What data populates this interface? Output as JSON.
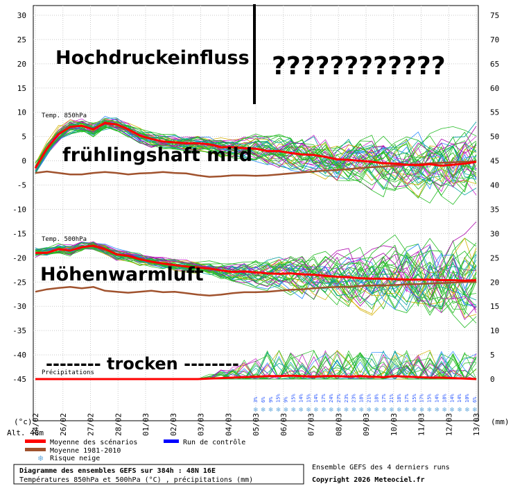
{
  "chart_data": {
    "type": "line",
    "panels": [
      {
        "name": "Temp. 850hPa",
        "ylim_left": [
          -10,
          10
        ]
      },
      {
        "name": "Temp. 500hPa",
        "ylim_left": [
          -30,
          -15
        ]
      },
      {
        "name": "Précipitations",
        "ylim_right": [
          0,
          10
        ]
      }
    ],
    "y_left_ticks": [
      "30",
      "25",
      "20",
      "15",
      "10",
      "5",
      "0",
      "-5",
      "-10",
      "-15",
      "-20",
      "-25",
      "-30",
      "-35",
      "-40",
      "-45"
    ],
    "y_right_ticks": [
      "75",
      "70",
      "65",
      "60",
      "55",
      "50",
      "45",
      "40",
      "35",
      "30",
      "25",
      "20",
      "15",
      "10",
      "5",
      "0"
    ],
    "x_ticks": [
      "24/02",
      "26/02",
      "27/02",
      "28/02",
      "01/03",
      "02/03",
      "03/03",
      "04/03",
      "05/03",
      "06/03",
      "07/03",
      "08/03",
      "09/03",
      "10/03",
      "11/03",
      "12/03",
      "13/03"
    ],
    "x_unit_left": "(°c)",
    "x_unit_right": "(mm)",
    "alt_label": "Alt. 48m",
    "series": [
      {
        "name": "Moyenne des scénarios",
        "color": "#ff0000",
        "t850": [
          -1.5,
          2.5,
          5.5,
          7.0,
          7.2,
          6.5,
          7.8,
          7.5,
          6.5,
          5.2,
          4.5,
          4.0,
          3.8,
          3.6,
          3.6,
          3.4,
          2.8,
          2.8,
          2.6,
          2.5,
          2.0,
          2.0,
          1.6,
          1.3,
          1.2,
          0.8,
          0.3,
          0.2,
          0.0,
          -0.2,
          -0.5,
          -0.6,
          -0.8,
          -0.9,
          -0.7,
          -1.0,
          -0.8,
          -0.6,
          -0.2
        ],
        "t500": [
          -19.0,
          -19.0,
          -18.2,
          -18.5,
          -17.8,
          -17.5,
          -18.2,
          -19.3,
          -19.6,
          -20.3,
          -20.8,
          -21.2,
          -21.5,
          -21.8,
          -22.0,
          -22.2,
          -22.6,
          -22.9,
          -22.8,
          -23.0,
          -23.2,
          -23.3,
          -23.2,
          -23.4,
          -23.5,
          -23.7,
          -23.9,
          -24.0,
          -24.2,
          -24.3,
          -24.3,
          -24.4,
          -24.5,
          -24.5,
          -24.5,
          -24.6,
          -24.6,
          -24.7,
          -24.6
        ]
      },
      {
        "name": "Moyenne 1981-2010",
        "color": "#a0522d",
        "t850": [
          -2.5,
          -2.2,
          -2.5,
          -2.8,
          -2.8,
          -2.5,
          -2.3,
          -2.5,
          -2.8,
          -2.6,
          -2.5,
          -2.3,
          -2.5,
          -2.6,
          -3.0,
          -3.3,
          -3.2,
          -3.0,
          -3.0,
          -3.1,
          -3.0,
          -2.8,
          -2.6,
          -2.4,
          -2.2,
          -2.0,
          -1.9,
          -1.7,
          -1.5,
          -1.3,
          -1.2,
          -1.0,
          -0.8,
          -0.7,
          -0.5,
          -0.4,
          -0.3,
          -0.2,
          -0.1
        ],
        "t500": [
          -27.0,
          -26.5,
          -26.2,
          -26.0,
          -26.3,
          -26.0,
          -26.8,
          -27.0,
          -27.2,
          -27.0,
          -26.8,
          -27.1,
          -27.0,
          -27.3,
          -27.6,
          -27.8,
          -27.6,
          -27.3,
          -27.1,
          -27.1,
          -27.0,
          -26.8,
          -26.6,
          -26.5,
          -26.3,
          -26.1,
          -26.0,
          -26.0,
          -25.8,
          -25.7,
          -25.7,
          -25.6,
          -25.5,
          -25.4,
          -25.3,
          -25.2,
          -25.1,
          -25.0,
          -25.0
        ]
      }
    ],
    "precip_mean_mm": [
      0,
      0,
      0,
      0,
      0,
      0,
      0,
      0,
      0,
      0,
      0,
      0,
      0,
      0,
      0,
      0.1,
      0.2,
      0.3,
      0.4,
      0.5,
      0.6,
      0.6,
      0.7,
      0.6,
      0.5,
      0.6,
      0.6,
      0.5,
      0.6,
      0.5,
      0.4,
      0.6,
      0.5,
      0.4,
      0.3,
      0.3,
      0.2,
      0.1,
      0
    ],
    "snow_risk_pct": [
      "3%",
      "6%",
      "9%",
      "15%",
      "9%",
      "15%",
      "14%",
      "15%",
      "14%",
      "17%",
      "24%",
      "27%",
      "23%",
      "23%",
      "18%",
      "21%",
      "18%",
      "17%",
      "21%",
      "18%",
      "17%",
      "15%",
      "17%",
      "15%",
      "14%",
      "18%",
      "14%",
      "14%",
      "10%",
      "6%"
    ]
  },
  "annotations": {
    "hochdruck": "Hochdruckeinfluss",
    "questions": "????????????",
    "mild": "frühlingshaft mild",
    "hoehen": "Höhenwarmluft",
    "trocken": "-------- trocken --------"
  },
  "legend": {
    "mean_label": "Moyenne des scénarios",
    "clim_label": "Moyenne 1981-2010",
    "control_label": "Run de contrôle",
    "snow_label": "Risque neige",
    "mean_color": "#ff0000",
    "clim_color": "#a0522d",
    "control_color": "#0000ff",
    "snow_color": "#66aadd"
  },
  "footer": {
    "title": "Diagramme des ensembles GEFS sur 384h : 48N 16E",
    "subtitle": "Températures 850hPa et 500hPa (°C) , précipitations (mm)",
    "ensemble": "Ensemble GEFS des 4 derniers runs",
    "copyright": "Copyright 2026 Meteociel.fr"
  }
}
